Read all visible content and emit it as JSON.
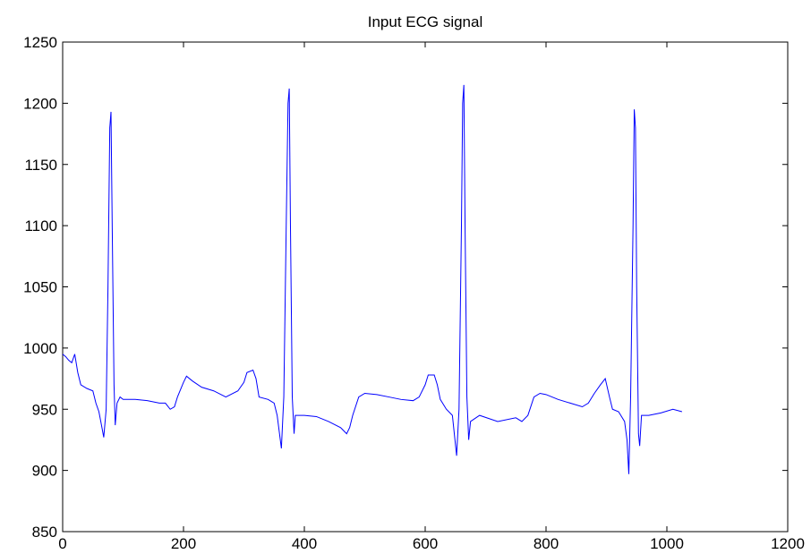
{
  "chart_data": {
    "type": "line",
    "title": "Input ECG signal",
    "x": [
      0,
      5,
      10,
      15,
      20,
      25,
      30,
      40,
      50,
      55,
      60,
      65,
      68,
      72,
      75,
      78,
      80,
      82,
      85,
      87,
      90,
      95,
      100,
      120,
      140,
      160,
      170,
      178,
      185,
      190,
      200,
      205,
      215,
      230,
      250,
      270,
      290,
      300,
      305,
      315,
      320,
      325,
      340,
      350,
      355,
      362,
      366,
      370,
      373,
      375,
      377,
      380,
      383,
      385,
      400,
      420,
      440,
      460,
      470,
      475,
      480,
      490,
      500,
      520,
      540,
      560,
      580,
      590,
      600,
      605,
      615,
      620,
      625,
      635,
      645,
      652,
      656,
      660,
      662,
      664,
      666,
      669,
      672,
      675,
      690,
      720,
      750,
      760,
      770,
      780,
      790,
      800,
      820,
      840,
      860,
      870,
      880,
      890,
      898,
      905,
      910,
      920,
      930,
      934,
      937,
      940,
      944,
      946,
      948,
      950,
      953,
      955,
      958,
      970,
      990,
      1010,
      1025
    ],
    "series": [
      {
        "color": "#0000ff",
        "values": [
          995,
          993,
          990,
          988,
          995,
          980,
          970,
          967,
          965,
          955,
          948,
          935,
          927,
          950,
          1050,
          1180,
          1193,
          1100,
          970,
          937,
          955,
          960,
          958,
          958,
          957,
          955,
          955,
          950,
          952,
          960,
          972,
          977,
          973,
          968,
          965,
          960,
          965,
          972,
          980,
          982,
          975,
          960,
          958,
          955,
          945,
          918,
          960,
          1100,
          1200,
          1212,
          1100,
          960,
          930,
          945,
          945,
          944,
          940,
          935,
          930,
          935,
          945,
          960,
          963,
          962,
          960,
          958,
          957,
          960,
          970,
          978,
          978,
          970,
          958,
          950,
          945,
          912,
          950,
          1100,
          1200,
          1215,
          1100,
          960,
          925,
          940,
          945,
          940,
          943,
          940,
          945,
          960,
          963,
          962,
          958,
          955,
          952,
          955,
          963,
          970,
          975,
          960,
          950,
          948,
          940,
          925,
          897,
          960,
          1100,
          1195,
          1180,
          1050,
          930,
          920,
          945,
          945,
          947,
          950,
          948
        ]
      }
    ],
    "xlim": [
      0,
      1200
    ],
    "xticks": [
      0,
      200,
      400,
      600,
      800,
      1000,
      1200
    ],
    "ylim": [
      850,
      1250
    ],
    "yticks": [
      850,
      900,
      950,
      1000,
      1050,
      1100,
      1150,
      1200,
      1250
    ],
    "grid": false
  }
}
